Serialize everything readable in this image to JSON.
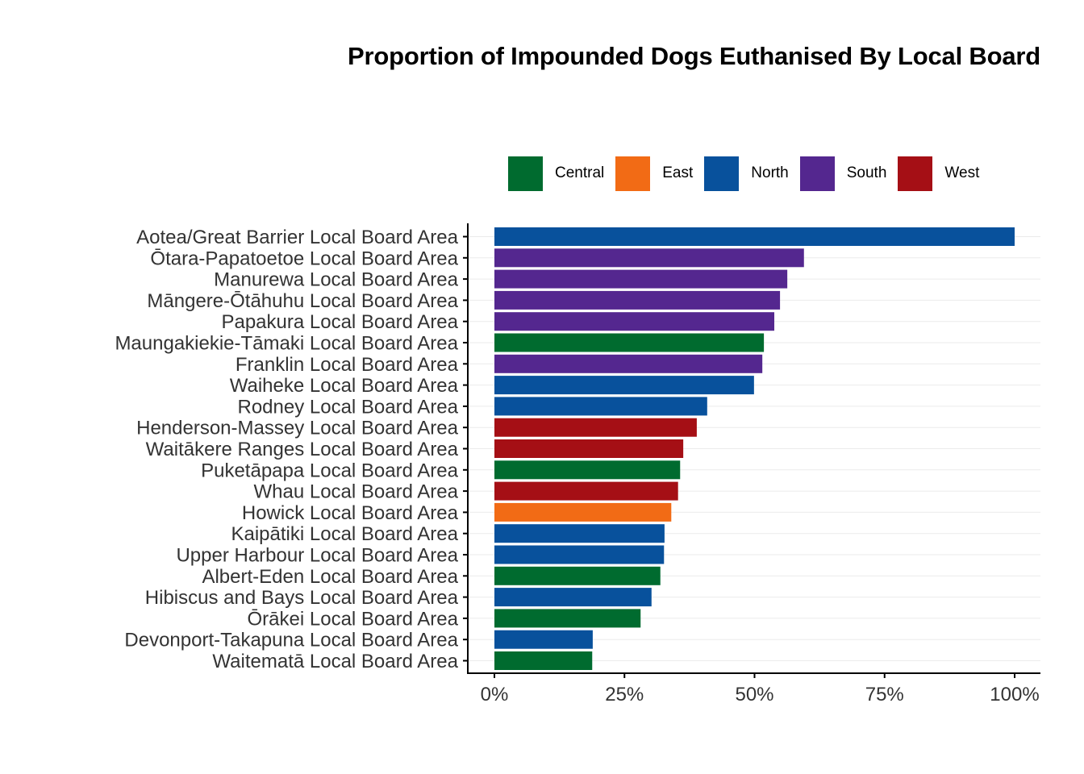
{
  "chart_data": {
    "type": "bar",
    "orientation": "horizontal",
    "title": "Proportion of Impounded Dogs Euthanised By Local Board",
    "xlabel": "",
    "ylabel": "",
    "xlim": [
      0,
      1
    ],
    "x_ticks": [
      0,
      0.25,
      0.5,
      0.75,
      1.0
    ],
    "x_tick_labels": [
      "0%",
      "25%",
      "50%",
      "75%",
      "100%"
    ],
    "grid": "horizontal major lines",
    "legend_position": "top-right",
    "legend": [
      {
        "name": "Central",
        "color": "#006b2f"
      },
      {
        "name": "East",
        "color": "#f26b15"
      },
      {
        "name": "North",
        "color": "#08519c"
      },
      {
        "name": "South",
        "color": "#54278f"
      },
      {
        "name": "West",
        "color": "#a50f15"
      }
    ],
    "categories": [
      "Aotea/Great Barrier Local Board Area",
      "Ōtara-Papatoetoe Local Board Area",
      "Manurewa Local Board Area",
      "Māngere-Ōtāhuhu Local Board Area",
      "Papakura Local Board Area",
      "Maungakiekie-Tāmaki Local Board Area",
      "Franklin Local Board Area",
      "Waiheke Local Board Area",
      "Rodney Local Board Area",
      "Henderson-Massey Local Board Area",
      "Waitākere Ranges Local Board Area",
      "Puketāpapa Local Board Area",
      "Whau Local Board Area",
      "Howick Local Board Area",
      "Kaipātiki Local Board Area",
      "Upper Harbour Local Board Area",
      "Albert-Eden Local Board Area",
      "Hibiscus and Bays Local Board Area",
      "Ōrākei Local Board Area",
      "Devonport-Takapuna Local Board Area",
      "Waitematā Local Board Area"
    ],
    "values": [
      1.0,
      0.595,
      0.563,
      0.549,
      0.538,
      0.518,
      0.515,
      0.499,
      0.409,
      0.389,
      0.363,
      0.357,
      0.353,
      0.34,
      0.327,
      0.326,
      0.319,
      0.302,
      0.281,
      0.189,
      0.188
    ],
    "groups": [
      "North",
      "South",
      "South",
      "South",
      "South",
      "Central",
      "South",
      "North",
      "North",
      "West",
      "West",
      "Central",
      "West",
      "East",
      "North",
      "North",
      "Central",
      "North",
      "Central",
      "North",
      "Central"
    ]
  }
}
